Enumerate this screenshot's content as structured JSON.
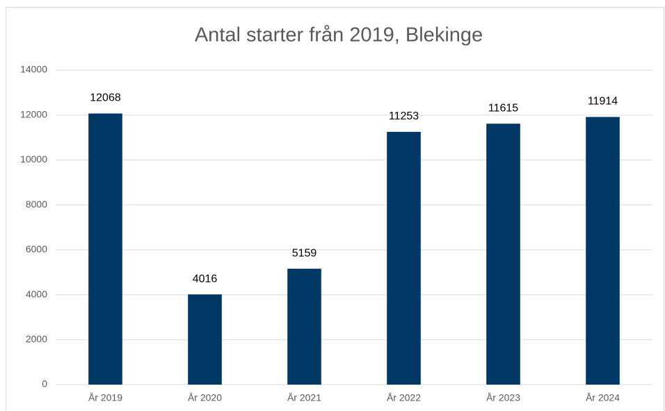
{
  "chart_data": {
    "type": "bar",
    "title": "Antal starter från 2019, Blekinge",
    "categories": [
      "År 2019",
      "År 2020",
      "År 2021",
      "År 2022",
      "År 2023",
      "År 2024"
    ],
    "values": [
      12068,
      4016,
      5159,
      11253,
      11615,
      11914
    ],
    "color": "#003865",
    "ylim": [
      0,
      14000
    ],
    "yticks": [
      0,
      2000,
      4000,
      6000,
      8000,
      10000,
      12000,
      14000
    ],
    "grid": true
  }
}
